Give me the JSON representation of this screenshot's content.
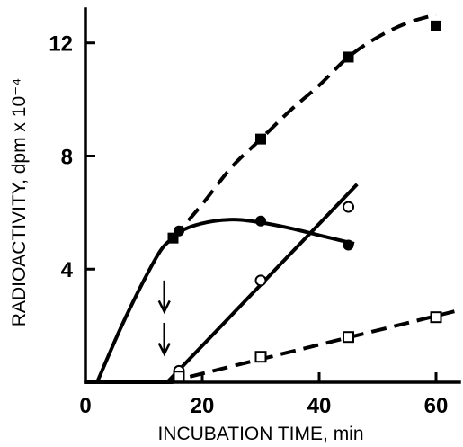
{
  "chart_data": {
    "type": "line",
    "xlabel": "INCUBATION TIME, min",
    "ylabel": "RADIOACTIVITY, dpm x 10⁻⁴",
    "xlim": [
      0,
      64
    ],
    "ylim": [
      0,
      13.2
    ],
    "xticks": [
      "0",
      "20",
      "40",
      "60"
    ],
    "yticks": [
      "4",
      "8",
      "12"
    ],
    "xtick_values": [
      0,
      20,
      40,
      60
    ],
    "ytick_values": [
      4,
      8,
      12
    ],
    "grid": false,
    "legend": "none",
    "series": [
      {
        "marker": "filled-square",
        "line": "dashed",
        "points": [
          [
            15,
            5.1
          ],
          [
            30,
            8.6
          ],
          [
            45,
            11.5
          ],
          [
            60,
            12.6
          ]
        ],
        "curve": [
          [
            2,
            0
          ],
          [
            6,
            1.9
          ],
          [
            10,
            3.6
          ],
          [
            13,
            4.7
          ],
          [
            15,
            5.1
          ],
          [
            20,
            6.3
          ],
          [
            25,
            7.6
          ],
          [
            30,
            8.6
          ],
          [
            35,
            9.6
          ],
          [
            40,
            10.5
          ],
          [
            45,
            11.5
          ],
          [
            50,
            12.2
          ],
          [
            55,
            12.7
          ],
          [
            60,
            13.0
          ]
        ]
      },
      {
        "marker": "filled-circle",
        "line": "solid",
        "points": [
          [
            16,
            5.35
          ],
          [
            30,
            5.7
          ],
          [
            45,
            4.85
          ]
        ],
        "curve": [
          [
            15,
            5.2
          ],
          [
            18,
            5.5
          ],
          [
            22,
            5.7
          ],
          [
            26,
            5.75
          ],
          [
            30,
            5.65
          ],
          [
            35,
            5.45
          ],
          [
            40,
            5.2
          ],
          [
            44,
            5.0
          ],
          [
            46,
            4.9
          ]
        ]
      },
      {
        "marker": "open-circle",
        "line": "solid",
        "points": [
          [
            16,
            0.4
          ],
          [
            30,
            3.6
          ],
          [
            45,
            6.2
          ]
        ],
        "curve": [
          [
            14,
            0
          ],
          [
            46.5,
            7.0
          ]
        ]
      },
      {
        "marker": "open-square",
        "line": "dashed",
        "points": [
          [
            16,
            0.2
          ],
          [
            30,
            0.9
          ],
          [
            45,
            1.6
          ],
          [
            60,
            2.3
          ]
        ],
        "curve": [
          [
            14,
            0
          ],
          [
            64,
            2.55
          ]
        ]
      }
    ],
    "baseline": [
      [
        0,
        0
      ],
      [
        15,
        0
      ]
    ],
    "annotations": [
      {
        "type": "arrow",
        "x": 13.5,
        "y_from": 3.6,
        "y_to": 2.5
      },
      {
        "type": "arrow",
        "x": 13.5,
        "y_from": 2.1,
        "y_to": 1.0
      }
    ]
  }
}
